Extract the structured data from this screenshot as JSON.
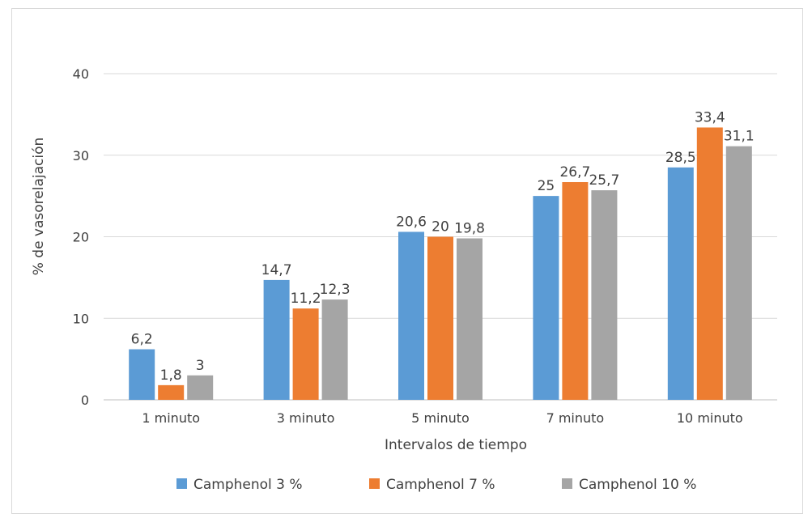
{
  "chart_data": {
    "type": "bar",
    "title": "",
    "xlabel": "Intervalos de tiempo",
    "ylabel": "% de vasorelajación",
    "ylim": [
      0,
      40
    ],
    "yticks": [
      "0",
      "10",
      "20",
      "30",
      "40"
    ],
    "grid": true,
    "legend_position": "bottom",
    "categories": [
      "1 minuto",
      "3 minuto",
      "5 minuto",
      "7 minuto",
      "10 minuto"
    ],
    "series": [
      {
        "name": "Camphenol 3 %",
        "color": "#5b9bd5",
        "values": [
          6.2,
          14.7,
          20.6,
          25,
          28.5
        ],
        "labels": [
          "6,2",
          "14,7",
          "20,6",
          "25",
          "28,5"
        ]
      },
      {
        "name": "Camphenol 7 %",
        "color": "#ed7d31",
        "values": [
          1.8,
          11.2,
          20,
          26.7,
          33.4
        ],
        "labels": [
          "1,8",
          "11,2",
          "20",
          "26,7",
          "33,4"
        ]
      },
      {
        "name": "Camphenol 10 %",
        "color": "#a5a5a5",
        "values": [
          3,
          12.3,
          19.8,
          25.7,
          31.1
        ],
        "labels": [
          "3",
          "12,3",
          "19,8",
          "25,7",
          "31,1"
        ]
      }
    ]
  }
}
